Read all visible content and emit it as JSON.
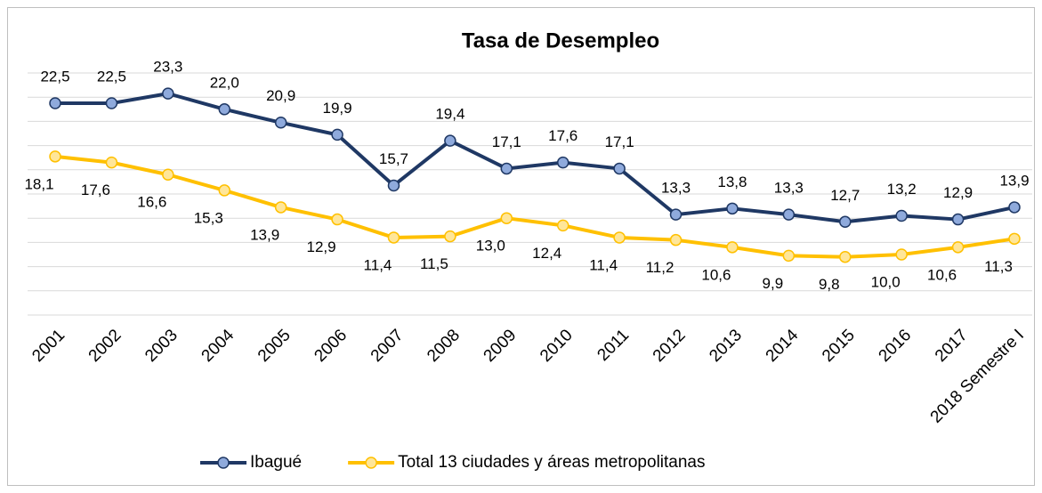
{
  "chart_data": {
    "type": "line",
    "title": "Tasa de Desempleo",
    "categories": [
      "2001",
      "2002",
      "2003",
      "2004",
      "2005",
      "2006",
      "2007",
      "2008",
      "2009",
      "2010",
      "2011",
      "2012",
      "2013",
      "2014",
      "2015",
      "2016",
      "2017",
      "2018 Semestre I"
    ],
    "series": [
      {
        "name": "Ibagué",
        "color": "#1f3864",
        "marker_color": "#8faadc",
        "values": [
          22.5,
          22.5,
          23.3,
          22.0,
          20.9,
          19.9,
          15.7,
          19.4,
          17.1,
          17.6,
          17.1,
          13.3,
          13.8,
          13.3,
          12.7,
          13.2,
          12.9,
          13.9
        ],
        "value_labels": [
          "22,5",
          "22,5",
          "23,3",
          "22,0",
          "20,9",
          "19,9",
          "15,7",
          "19,4",
          "17,1",
          "17,6",
          "17,1",
          "13,3",
          "13,8",
          "13,3",
          "12,7",
          "13,2",
          "12,9",
          "13,9"
        ]
      },
      {
        "name": "Total 13 ciudades y áreas metropolitanas",
        "color": "#ffc000",
        "marker_color": "#ffe699",
        "values": [
          18.1,
          17.6,
          16.6,
          15.3,
          13.9,
          12.9,
          11.4,
          11.5,
          13.0,
          12.4,
          11.4,
          11.2,
          10.6,
          9.9,
          9.8,
          10.0,
          10.6,
          11.3
        ],
        "value_labels": [
          "18,1",
          "17,6",
          "16,6",
          "15,3",
          "13,9",
          "12,9",
          "11,4",
          "11,5",
          "13,0",
          "12,4",
          "11,4",
          "11,2",
          "10,6",
          "9,9",
          "9,8",
          "10,0",
          "10,6",
          "11,3"
        ]
      }
    ],
    "ylim": [
      5,
      25
    ],
    "yticks": [
      5,
      7,
      9,
      11,
      13,
      15,
      17,
      19,
      21,
      23,
      25
    ],
    "grid": true,
    "legend": "bottom"
  }
}
